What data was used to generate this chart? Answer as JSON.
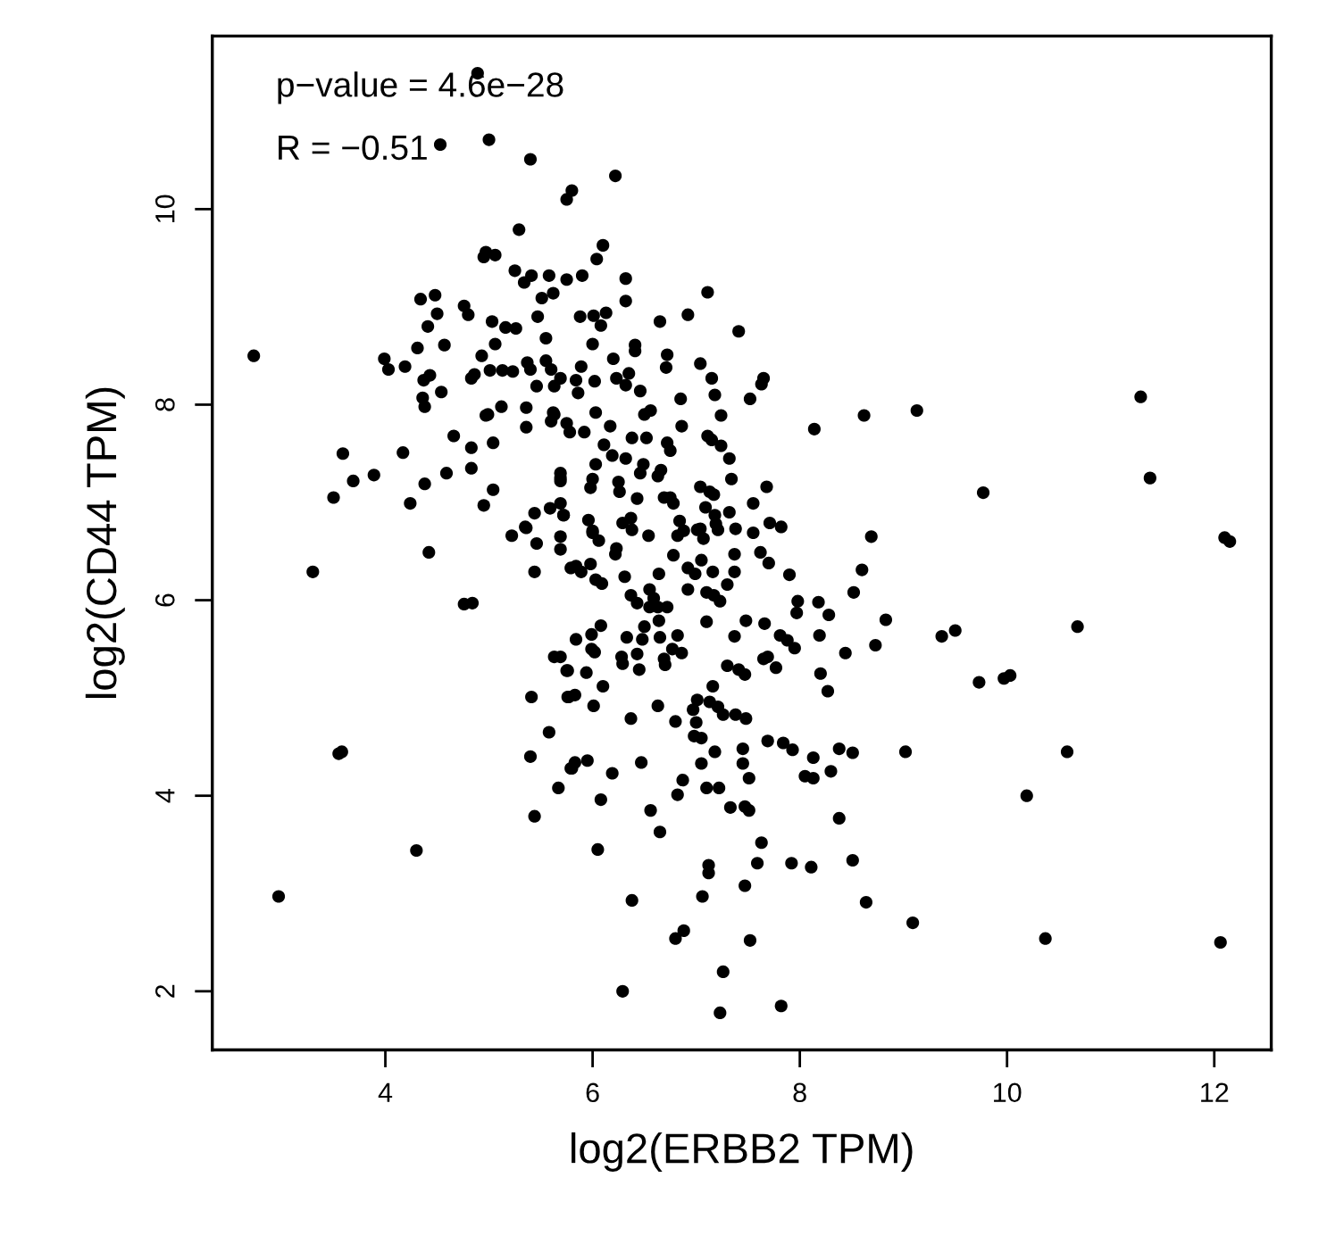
{
  "chart_data": {
    "type": "scatter",
    "xlabel": "log2(ERBB2 TPM)",
    "ylabel": "log2(CD44 TPM)",
    "annotations": [
      "p−value = 4.6e−28",
      "R = −0.51"
    ],
    "xlim": [
      2.33,
      12.55
    ],
    "ylim": [
      1.4,
      11.77
    ],
    "xticks": [
      4,
      6,
      8,
      10,
      12
    ],
    "yticks": [
      2,
      4,
      6,
      8,
      10
    ],
    "grid": false,
    "marker": "circle",
    "series": [
      {
        "color": "#000000",
        "x": [
          4.89,
          4.53,
          5.0,
          5.4,
          5.29,
          4.97,
          4.95,
          5.06,
          5.25,
          5.34,
          5.41,
          5.58,
          4.34,
          4.48,
          4.5,
          4.41,
          4.76,
          4.8,
          5.03,
          5.16,
          5.26,
          5.51,
          5.62,
          5.47,
          5.55,
          2.73,
          3.99,
          4.03,
          4.19,
          4.31,
          4.57,
          4.37,
          4.43,
          4.54,
          4.36,
          4.38,
          4.86,
          4.83,
          4.93,
          5.01,
          5.13,
          5.23,
          5.06,
          5.37,
          5.4,
          5.55,
          5.6,
          5.46,
          5.63,
          4.99,
          4.97,
          5.12,
          5.36,
          5.36,
          5.62,
          5.6,
          4.66,
          4.83,
          5.04,
          4.17,
          3.59,
          3.69,
          3.89,
          3.5,
          4.24,
          4.38,
          4.59,
          4.83,
          4.95,
          5.04,
          5.69,
          5.69,
          5.59,
          5.44,
          5.35,
          5.72,
          5.22,
          6.22,
          5.75,
          5.8,
          6.1,
          6.04,
          5.75,
          5.9,
          6.32,
          6.32,
          7.11,
          5.88,
          6.01,
          6.13,
          6.08,
          6.65,
          6.92,
          7.41,
          6.0,
          6.41,
          6.41,
          6.2,
          6.72,
          6.71,
          7.04,
          5.89,
          5.69,
          6.02,
          5.84,
          5.86,
          6.23,
          6.35,
          6.32,
          6.46,
          7.15,
          7.18,
          6.85,
          7.65,
          7.63,
          7.52,
          6.03,
          5.63,
          6.5,
          6.56,
          7.24,
          6.86,
          5.75,
          5.78,
          5.92,
          6.17,
          6.38,
          6.52,
          6.72,
          6.75,
          7.11,
          7.15,
          7.24,
          6.11,
          6.19,
          6.32,
          7.32,
          8.14,
          8.62,
          9.13,
          6.03,
          6.0,
          5.98,
          6.49,
          6.46,
          6.66,
          6.63,
          6.25,
          6.26,
          6.43,
          6.37,
          6.29,
          7.04,
          7.13,
          7.17,
          7.34,
          6.69,
          6.75,
          6.78,
          7.09,
          7.18,
          7.32,
          7.55,
          7.68,
          7.04,
          7.19,
          7.38,
          7.55,
          7.71,
          7.82,
          8.69,
          5.96,
          6.0,
          5.69,
          5.69,
          5.72,
          6.84,
          6.88,
          11.29,
          11.38,
          9.77,
          12.1,
          12.15,
          3.3,
          4.42,
          4.76,
          4.84,
          3.55,
          3.58,
          4.3,
          2.97,
          5.36,
          5.46,
          5.69,
          5.69,
          5.44,
          5.79,
          5.69,
          5.75,
          5.41,
          5.76,
          5.58,
          5.4,
          5.79,
          5.67,
          5.44,
          6.29,
          7.23,
          7.82,
          7.26,
          6.8,
          6.88,
          7.52,
          6.38,
          7.06,
          7.47,
          7.12,
          7.12,
          7.59,
          7.63,
          7.92,
          8.11,
          8.51,
          8.64,
          9.09,
          6.05,
          6.65,
          6.56,
          6.08,
          6.82,
          6.87,
          7.1,
          7.22,
          7.33,
          7.47,
          7.51,
          8.38,
          6.19,
          6.47,
          5.8,
          5.83,
          5.95,
          7.05,
          7.18,
          7.45,
          7.45,
          7.51,
          7.69,
          7.84,
          7.93,
          8.13,
          8.05,
          8.13,
          8.3,
          8.38,
          8.51,
          9.02,
          6.37,
          6.63,
          6.8,
          6.97,
          7.0,
          7.01,
          6.98,
          7.05,
          7.13,
          7.21,
          7.26,
          7.38,
          7.48,
          7.16,
          7.3,
          7.41,
          7.47,
          7.65,
          7.69,
          7.77,
          8.2,
          8.27,
          8.44,
          8.73,
          8.83,
          5.63,
          5.76,
          5.94,
          5.77,
          5.83,
          6.01,
          6.1,
          5.84,
          5.99,
          5.99,
          6.02,
          6.08,
          6.29,
          6.28,
          6.43,
          6.45,
          6.33,
          6.48,
          6.5,
          6.65,
          6.69,
          6.7,
          6.82,
          6.77,
          6.86,
          6.64,
          6.63,
          7.1,
          7.37,
          7.48,
          7.66,
          7.81,
          7.88,
          7.95,
          7.98,
          7.97,
          8.18,
          8.28,
          8.19,
          8.52,
          8.6,
          7.9,
          7.7,
          7.62,
          7.37,
          7.37,
          7.3,
          7.16,
          6.92,
          6.99,
          7.05,
          7.07,
          7.01,
          7.21,
          7.1,
          7.23,
          7.17,
          6.92,
          6.78,
          6.82,
          6.64,
          6.55,
          6.37,
          6.59,
          6.72,
          6.55,
          6.43,
          6.31,
          6.22,
          6.23,
          6.54,
          6.38,
          6.0,
          6.06,
          5.84,
          5.89,
          5.98,
          6.03,
          6.09,
          9.37,
          9.5,
          10.68,
          9.73,
          9.97,
          10.03,
          10.58,
          10.19,
          10.37,
          12.06
        ],
        "values": [
          11.39,
          10.66,
          10.71,
          10.51,
          9.79,
          9.56,
          9.51,
          9.53,
          9.37,
          9.25,
          9.32,
          9.32,
          9.08,
          9.12,
          8.93,
          8.8,
          9.01,
          8.92,
          8.85,
          8.79,
          8.78,
          9.09,
          9.14,
          8.9,
          8.68,
          8.5,
          8.47,
          8.36,
          8.39,
          8.58,
          8.61,
          8.25,
          8.3,
          8.13,
          8.07,
          7.98,
          8.31,
          8.27,
          8.5,
          8.35,
          8.35,
          8.34,
          8.62,
          8.43,
          8.36,
          8.45,
          8.36,
          8.19,
          8.19,
          7.9,
          7.89,
          7.98,
          7.97,
          7.77,
          7.92,
          7.83,
          7.68,
          7.56,
          7.61,
          7.51,
          7.5,
          7.22,
          7.28,
          7.05,
          6.99,
          7.19,
          7.3,
          7.35,
          6.97,
          7.13,
          7.3,
          7.22,
          6.94,
          6.89,
          6.75,
          6.87,
          6.66,
          10.34,
          10.1,
          10.19,
          9.63,
          9.49,
          9.28,
          9.32,
          9.29,
          9.06,
          9.15,
          8.9,
          8.91,
          8.94,
          8.81,
          8.85,
          8.92,
          8.75,
          8.62,
          8.61,
          8.55,
          8.47,
          8.51,
          8.38,
          8.42,
          8.39,
          8.27,
          8.24,
          8.25,
          8.12,
          8.27,
          8.32,
          8.2,
          8.14,
          8.27,
          8.1,
          8.06,
          8.27,
          8.21,
          8.06,
          7.92,
          7.9,
          7.9,
          7.94,
          7.89,
          7.78,
          7.81,
          7.72,
          7.72,
          7.78,
          7.66,
          7.66,
          7.61,
          7.53,
          7.68,
          7.64,
          7.58,
          7.59,
          7.48,
          7.45,
          7.45,
          7.75,
          7.89,
          7.94,
          7.39,
          7.24,
          7.15,
          7.39,
          7.3,
          7.33,
          7.27,
          7.21,
          7.11,
          7.04,
          6.84,
          6.79,
          7.16,
          7.11,
          7.08,
          7.24,
          7.05,
          7.05,
          6.99,
          6.95,
          6.87,
          6.9,
          6.99,
          7.16,
          6.73,
          6.78,
          6.73,
          6.69,
          6.79,
          6.75,
          6.65,
          6.82,
          6.71,
          7.25,
          6.99,
          6.87,
          6.81,
          6.71,
          8.08,
          7.25,
          7.1,
          6.64,
          6.6,
          6.29,
          6.49,
          5.96,
          5.97,
          4.43,
          4.45,
          3.44,
          2.97,
          6.74,
          6.58,
          6.65,
          6.52,
          6.29,
          6.33,
          5.42,
          5.28,
          5.01,
          5.01,
          4.65,
          4.4,
          4.28,
          4.08,
          3.79,
          2.0,
          1.78,
          1.85,
          2.2,
          2.54,
          2.62,
          2.52,
          2.93,
          2.97,
          3.08,
          3.29,
          3.21,
          3.31,
          3.52,
          3.31,
          3.27,
          3.34,
          2.91,
          2.7,
          3.45,
          3.63,
          3.85,
          3.96,
          4.01,
          4.16,
          4.08,
          4.08,
          3.88,
          3.89,
          3.85,
          3.77,
          4.23,
          4.34,
          4.28,
          4.34,
          4.36,
          4.33,
          4.45,
          4.48,
          4.33,
          4.18,
          4.56,
          4.54,
          4.47,
          4.39,
          4.2,
          4.18,
          4.25,
          4.48,
          4.44,
          4.45,
          4.79,
          4.92,
          4.76,
          4.88,
          4.75,
          4.98,
          4.61,
          4.59,
          4.96,
          4.91,
          4.83,
          4.83,
          4.79,
          5.12,
          5.33,
          5.29,
          5.24,
          5.4,
          5.42,
          5.31,
          5.25,
          5.07,
          5.46,
          5.54,
          5.8,
          5.42,
          5.28,
          5.26,
          5.01,
          5.03,
          4.92,
          5.12,
          5.6,
          5.65,
          5.5,
          5.47,
          5.74,
          5.35,
          5.42,
          5.45,
          5.29,
          5.62,
          5.6,
          5.73,
          5.62,
          5.4,
          5.34,
          5.64,
          5.5,
          5.46,
          5.79,
          5.93,
          5.78,
          5.63,
          5.79,
          5.76,
          5.64,
          5.59,
          5.51,
          5.99,
          5.87,
          5.98,
          5.85,
          5.64,
          6.08,
          6.31,
          6.26,
          6.38,
          6.49,
          6.47,
          6.29,
          6.16,
          6.29,
          6.33,
          6.27,
          6.41,
          6.63,
          6.72,
          6.72,
          6.08,
          5.99,
          6.05,
          6.11,
          6.46,
          6.66,
          6.27,
          6.11,
          6.05,
          6.02,
          5.93,
          5.93,
          5.97,
          6.24,
          6.47,
          6.53,
          6.66,
          6.72,
          6.69,
          6.61,
          6.35,
          6.29,
          6.37,
          6.21,
          6.17,
          5.63,
          5.69,
          5.73,
          5.16,
          5.2,
          5.23,
          4.45,
          4.0,
          2.54,
          2.5
        ]
      }
    ]
  }
}
